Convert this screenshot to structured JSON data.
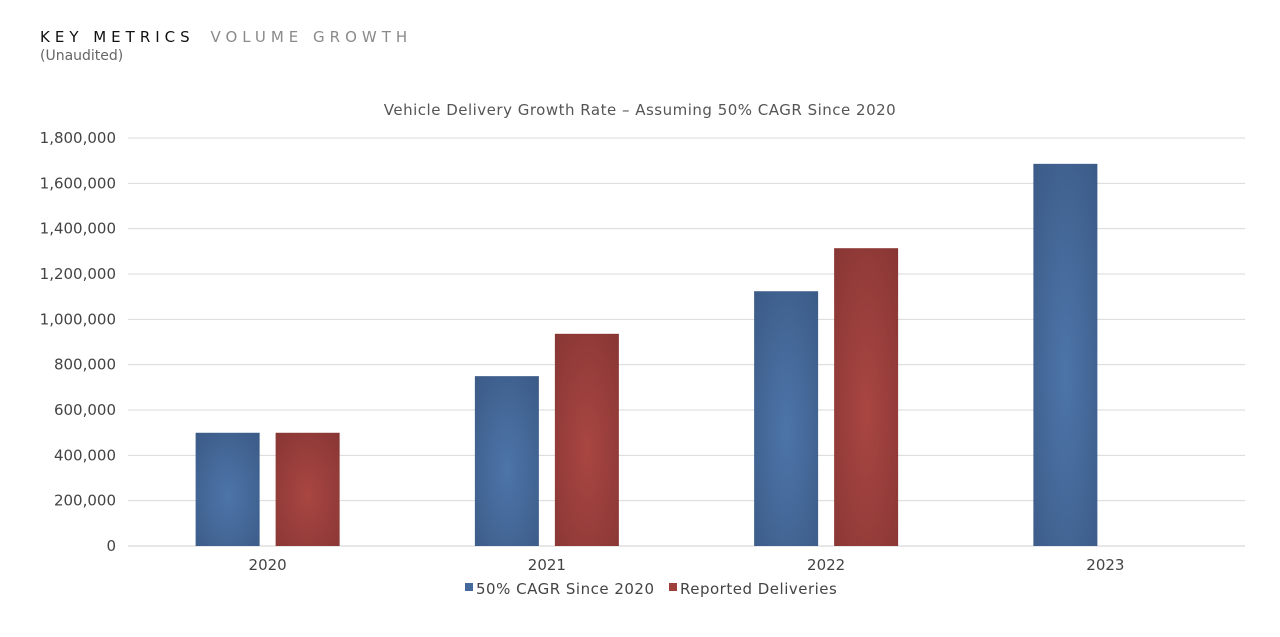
{
  "header": {
    "title_strong": "KEY METRICS",
    "title_light": "VOLUME GROWTH",
    "subtitle": "(Unaudited)"
  },
  "colors": {
    "series_blue": "#46699c",
    "series_red": "#9e3f3b",
    "grid": "#d9d9d9"
  },
  "chart_data": {
    "type": "bar",
    "title": "Vehicle Delivery Growth Rate – Assuming 50% CAGR Since 2020",
    "categories": [
      "2020",
      "2021",
      "2022",
      "2023"
    ],
    "series": [
      {
        "name": "50% CAGR Since 2020",
        "values": [
          499550,
          749325,
          1123988,
          1685981
        ]
      },
      {
        "name": "Reported Deliveries",
        "values": [
          499550,
          936172,
          1313851,
          null
        ]
      }
    ],
    "ylim": [
      0,
      1800000
    ],
    "yticks": [
      0,
      200000,
      400000,
      600000,
      800000,
      1000000,
      1200000,
      1400000,
      1600000,
      1800000
    ],
    "ytick_labels": [
      "0",
      "200,000",
      "400,000",
      "600,000",
      "800,000",
      "1,000,000",
      "1,200,000",
      "1,400,000",
      "1,600,000",
      "1,800,000"
    ],
    "grid": true,
    "legend": "bottom-center"
  }
}
